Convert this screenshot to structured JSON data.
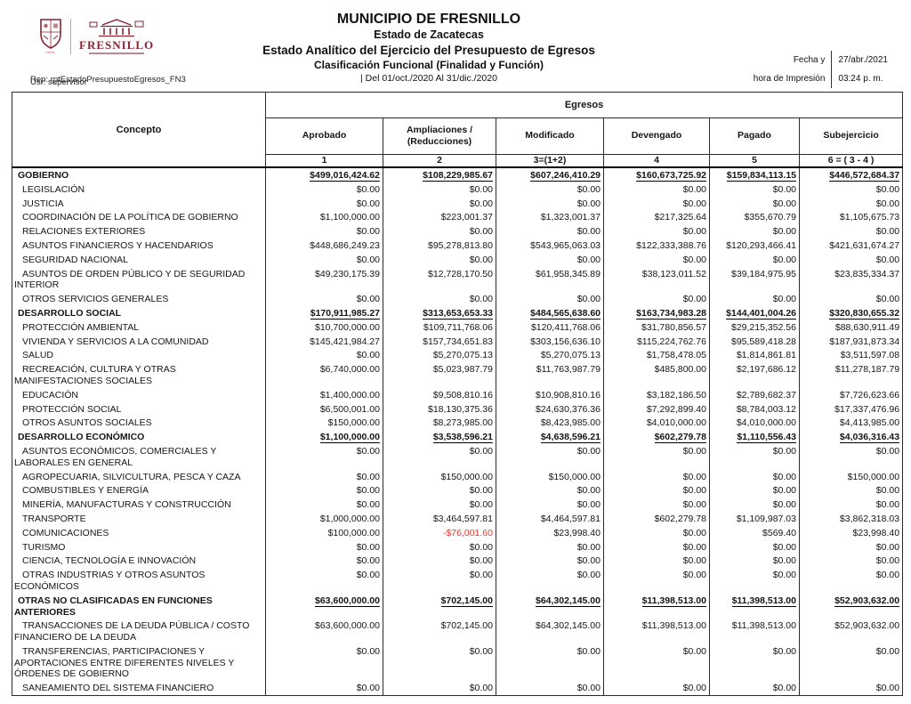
{
  "header": {
    "title": "MUNICIPIO DE FRESNILLO",
    "subtitle1": "Estado de Zacatecas",
    "subtitle2": "Estado Analítico del Ejercicio del Presupuesto de Egresos",
    "subtitle3": "Clasificación Funcional (Finalidad y Función)",
    "period": "| Del 01/oct./2020 Al 31/dic./2020",
    "report_id": "Rep: rptEstadoPresupuestoEgresos_FN3",
    "user": "Usr: supervisor",
    "print_label_line1": "Fecha y",
    "print_label_line2": "hora de Impresión",
    "print_date": "27/abr./2021",
    "print_time": "03:24 p. m.",
    "logo_text": "FRESNILLO",
    "brand_color": "#8a2332"
  },
  "table": {
    "concepto_header": "Concepto",
    "group_header": "Egresos",
    "columns": [
      "Aprobado",
      "Ampliaciones / (Reducciones)",
      "Modificado",
      "Devengado",
      "Pagado",
      "Subejercicio"
    ],
    "column_codes": [
      "1",
      "2",
      "3=(1+2)",
      "4",
      "5",
      "6 = ( 3 - 4 )"
    ],
    "negative_color": "#e8392f",
    "rows": [
      {
        "concepto": "GOBIERNO",
        "type": "section",
        "values": [
          "$499,016,424.62",
          "$108,229,985.67",
          "$607,246,410.29",
          "$160,673,725.92",
          "$159,834,113.15",
          "$446,572,684.37"
        ]
      },
      {
        "concepto": "LEGISLACIÓN",
        "type": "sub",
        "values": [
          "$0.00",
          "$0.00",
          "$0.00",
          "$0.00",
          "$0.00",
          "$0.00"
        ]
      },
      {
        "concepto": "JUSTICIA",
        "type": "sub",
        "values": [
          "$0.00",
          "$0.00",
          "$0.00",
          "$0.00",
          "$0.00",
          "$0.00"
        ]
      },
      {
        "concepto": "COORDINACIÓN DE LA POLÍTICA DE GOBIERNO",
        "type": "sub",
        "values": [
          "$1,100,000.00",
          "$223,001.37",
          "$1,323,001.37",
          "$217,325.64",
          "$355,670.79",
          "$1,105,675.73"
        ]
      },
      {
        "concepto": "RELACIONES EXTERIORES",
        "type": "sub",
        "values": [
          "$0.00",
          "$0.00",
          "$0.00",
          "$0.00",
          "$0.00",
          "$0.00"
        ]
      },
      {
        "concepto": "ASUNTOS FINANCIEROS Y HACENDARIOS",
        "type": "sub",
        "values": [
          "$448,686,249.23",
          "$95,278,813.80",
          "$543,965,063.03",
          "$122,333,388.76",
          "$120,293,466.41",
          "$421,631,674.27"
        ]
      },
      {
        "concepto": "SEGURIDAD NACIONAL",
        "type": "sub",
        "values": [
          "$0.00",
          "$0.00",
          "$0.00",
          "$0.00",
          "$0.00",
          "$0.00"
        ]
      },
      {
        "concepto": "ASUNTOS DE ORDEN PÚBLICO Y DE SEGURIDAD INTERIOR",
        "type": "sub",
        "values": [
          "$49,230,175.39",
          "$12,728,170.50",
          "$61,958,345.89",
          "$38,123,011.52",
          "$39,184,975.95",
          "$23,835,334.37"
        ]
      },
      {
        "concepto": "OTROS SERVICIOS GENERALES",
        "type": "sub",
        "values": [
          "$0.00",
          "$0.00",
          "$0.00",
          "$0.00",
          "$0.00",
          "$0.00"
        ]
      },
      {
        "concepto": "DESARROLLO SOCIAL",
        "type": "section",
        "values": [
          "$170,911,985.27",
          "$313,653,653.33",
          "$484,565,638.60",
          "$163,734,983.28",
          "$144,401,004.26",
          "$320,830,655.32"
        ]
      },
      {
        "concepto": "PROTECCIÓN AMBIENTAL",
        "type": "sub",
        "values": [
          "$10,700,000.00",
          "$109,711,768.06",
          "$120,411,768.06",
          "$31,780,856.57",
          "$29,215,352.56",
          "$88,630,911.49"
        ]
      },
      {
        "concepto": "VIVIENDA Y SERVICIOS  A LA COMUNIDAD",
        "type": "sub",
        "values": [
          "$145,421,984.27",
          "$157,734,651.83",
          "$303,156,636.10",
          "$115,224,762.76",
          "$95,589,418.28",
          "$187,931,873.34"
        ]
      },
      {
        "concepto": "SALUD",
        "type": "sub",
        "values": [
          "$0.00",
          "$5,270,075.13",
          "$5,270,075.13",
          "$1,758,478.05",
          "$1,814,861.81",
          "$3,511,597.08"
        ]
      },
      {
        "concepto": "RECREACIÓN, CULTURA Y OTRAS MANIFESTACIONES SOCIALES",
        "type": "sub",
        "values": [
          "$6,740,000.00",
          "$5,023,987.79",
          "$11,763,987.79",
          "$485,800.00",
          "$2,197,686.12",
          "$11,278,187.79"
        ]
      },
      {
        "concepto": "EDUCACIÓN",
        "type": "sub",
        "values": [
          "$1,400,000.00",
          "$9,508,810.16",
          "$10,908,810.16",
          "$3,182,186.50",
          "$2,789,682.37",
          "$7,726,623.66"
        ]
      },
      {
        "concepto": "PROTECCIÓN SOCIAL",
        "type": "sub",
        "values": [
          "$6,500,001.00",
          "$18,130,375.36",
          "$24,630,376.36",
          "$7,292,899.40",
          "$8,784,003.12",
          "$17,337,476.96"
        ]
      },
      {
        "concepto": "OTROS ASUNTOS SOCIALES",
        "type": "sub",
        "values": [
          "$150,000.00",
          "$8,273,985.00",
          "$8,423,985.00",
          "$4,010,000.00",
          "$4,010,000.00",
          "$4,413,985.00"
        ]
      },
      {
        "concepto": "DESARROLLO ECONÓMICO",
        "type": "section",
        "values": [
          "$1,100,000.00",
          "$3,538,596.21",
          "$4,638,596.21",
          "$602,279.78",
          "$1,110,556.43",
          "$4,036,316.43"
        ]
      },
      {
        "concepto": "ASUNTOS ECONÓMICOS, COMERCIALES Y LABORALES EN GENERAL",
        "type": "sub",
        "values": [
          "$0.00",
          "$0.00",
          "$0.00",
          "$0.00",
          "$0.00",
          "$0.00"
        ]
      },
      {
        "concepto": "AGROPECUARIA, SILVICULTURA, PESCA Y CAZA",
        "type": "sub",
        "values": [
          "$0.00",
          "$150,000.00",
          "$150,000.00",
          "$0.00",
          "$0.00",
          "$150,000.00"
        ]
      },
      {
        "concepto": "COMBUSTIBLES Y ENERGÍA",
        "type": "sub",
        "values": [
          "$0.00",
          "$0.00",
          "$0.00",
          "$0.00",
          "$0.00",
          "$0.00"
        ]
      },
      {
        "concepto": "MINERÍA, MANUFACTURAS Y CONSTRUCCIÓN",
        "type": "sub",
        "values": [
          "$0.00",
          "$0.00",
          "$0.00",
          "$0.00",
          "$0.00",
          "$0.00"
        ]
      },
      {
        "concepto": "TRANSPORTE",
        "type": "sub",
        "values": [
          "$1,000,000.00",
          "$3,464,597.81",
          "$4,464,597.81",
          "$602,279.78",
          "$1,109,987.03",
          "$3,862,318.03"
        ]
      },
      {
        "concepto": "COMUNICACIONES",
        "type": "sub",
        "values": [
          "$100,000.00",
          "-$76,001.60",
          "$23,998.40",
          "$0.00",
          "$569.40",
          "$23,998.40"
        ]
      },
      {
        "concepto": "TURISMO",
        "type": "sub",
        "values": [
          "$0.00",
          "$0.00",
          "$0.00",
          "$0.00",
          "$0.00",
          "$0.00"
        ]
      },
      {
        "concepto": "CIENCIA, TECNOLOGÍA E INNOVACIÓN",
        "type": "sub",
        "values": [
          "$0.00",
          "$0.00",
          "$0.00",
          "$0.00",
          "$0.00",
          "$0.00"
        ]
      },
      {
        "concepto": "OTRAS INDUSTRIAS Y OTROS ASUNTOS ECONÓMICOS",
        "type": "sub",
        "values": [
          "$0.00",
          "$0.00",
          "$0.00",
          "$0.00",
          "$0.00",
          "$0.00"
        ]
      },
      {
        "concepto": "OTRAS NO CLASIFICADAS EN FUNCIONES ANTERIORES",
        "type": "section",
        "values": [
          "$63,600,000.00",
          "$702,145.00",
          "$64,302,145.00",
          "$11,398,513.00",
          "$11,398,513.00",
          "$52,903,632.00"
        ]
      },
      {
        "concepto": "TRANSACCIONES DE LA DEUDA PÚBLICA / COSTO FINANCIERO DE LA DEUDA",
        "type": "sub",
        "values": [
          "$63,600,000.00",
          "$702,145.00",
          "$64,302,145.00",
          "$11,398,513.00",
          "$11,398,513.00",
          "$52,903,632.00"
        ]
      },
      {
        "concepto": "TRANSFERENCIAS, PARTICIPACIONES Y APORTACIONES ENTRE DIFERENTES NIVELES Y ÓRDENES DE GOBIERNO",
        "type": "sub",
        "values": [
          "$0.00",
          "$0.00",
          "$0.00",
          "$0.00",
          "$0.00",
          "$0.00"
        ]
      },
      {
        "concepto": "SANEAMIENTO DEL SISTEMA FINANCIERO",
        "type": "sub",
        "values": [
          "$0.00",
          "$0.00",
          "$0.00",
          "$0.00",
          "$0.00",
          "$0.00"
        ]
      }
    ]
  }
}
